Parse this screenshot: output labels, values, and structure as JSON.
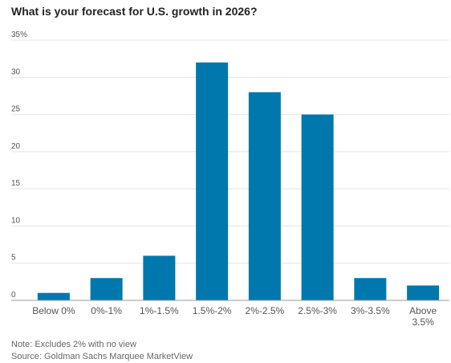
{
  "chart_data": {
    "type": "bar",
    "title": "What is your forecast for U.S. growth in 2026?",
    "categories": [
      "Below 0%",
      "0%-1%",
      "1%-1.5%",
      "1.5%-2%",
      "2%-2.5%",
      "2.5%-3%",
      "3%-3.5%",
      "Above 3.5%"
    ],
    "values": [
      1,
      3,
      6,
      32,
      28,
      25,
      3,
      2
    ],
    "ylim": [
      0,
      35
    ],
    "yticks": [
      0,
      5,
      10,
      15,
      20,
      25,
      30,
      35
    ],
    "ytick_labels": [
      "0",
      "5",
      "10",
      "15",
      "20",
      "25",
      "30",
      "35%"
    ],
    "xlabel": "",
    "ylabel": "",
    "grid": true,
    "bar_color": "#0078ad",
    "grid_color": "#e4e4e4",
    "baseline_color": "#999999"
  },
  "notes": {
    "note": "Note: Excludes 2% with no view",
    "source": "Source: Goldman Sachs Marquee MarketView"
  }
}
